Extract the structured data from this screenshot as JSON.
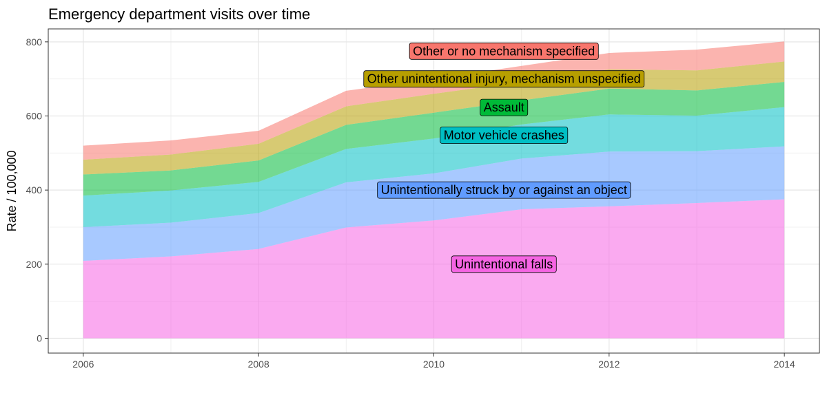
{
  "chart_data": {
    "type": "area",
    "stacked": true,
    "title": "Emergency department visits over time",
    "xlabel": "",
    "ylabel": "Rate / 100,000",
    "x": [
      2006,
      2007,
      2008,
      2009,
      2010,
      2011,
      2012,
      2013,
      2014
    ],
    "xlim": [
      2005.6,
      2014.4
    ],
    "ylim": [
      -40,
      835
    ],
    "x_ticks": [
      2006,
      2008,
      2010,
      2012,
      2014
    ],
    "y_ticks": [
      0,
      200,
      400,
      600,
      800
    ],
    "grid": true,
    "legend": "inline-labels",
    "series": [
      {
        "name": "Unintentional falls",
        "color": "#F564E3",
        "values": [
          209,
          221,
          241,
          299,
          318,
          348,
          356,
          365,
          375
        ]
      },
      {
        "name": "Unintentionally struck by or against an object",
        "color": "#619CFF",
        "values": [
          91,
          91,
          97,
          122,
          127,
          137,
          148,
          140,
          143
        ]
      },
      {
        "name": "Motor vehicle crashes",
        "color": "#00BFC4",
        "values": [
          85,
          87,
          84,
          90,
          94,
          92,
          100,
          96,
          106
        ]
      },
      {
        "name": "Assault",
        "color": "#00BA38",
        "values": [
          57,
          54,
          58,
          65,
          70,
          65,
          70,
          68,
          68
        ]
      },
      {
        "name": "Other unintentional injury, mechanism unspecified",
        "color": "#B79F00",
        "values": [
          40,
          43,
          45,
          50,
          51,
          50,
          52,
          54,
          55
        ]
      },
      {
        "name": "Other or no mechanism specified",
        "color": "#F8766D",
        "values": [
          38,
          38,
          35,
          42,
          40,
          43,
          44,
          56,
          54
        ]
      }
    ],
    "labels": [
      {
        "series": 5,
        "x": 2010.8,
        "y": 775
      },
      {
        "series": 4,
        "x": 2010.8,
        "y": 700
      },
      {
        "series": 3,
        "x": 2010.8,
        "y": 623
      },
      {
        "series": 2,
        "x": 2010.8,
        "y": 548
      },
      {
        "series": 1,
        "x": 2010.8,
        "y": 400
      },
      {
        "series": 0,
        "x": 2010.8,
        "y": 200
      }
    ]
  }
}
